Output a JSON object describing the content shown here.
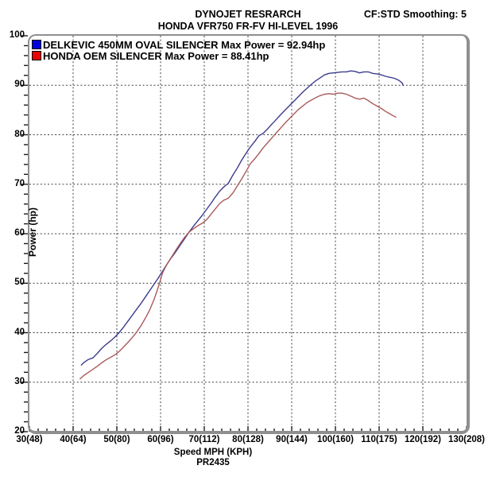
{
  "header": {
    "title": "DYNOJET RESRARCH",
    "subtitle": "HONDA VFR750 FR-FV HI-LEVEL 1996",
    "smoothing": "CF:STD Smoothing: 5"
  },
  "footer": {
    "x_axis_title": "Speed MPH (KPH)",
    "run_id": "PR2435"
  },
  "legend": [
    {
      "label": "DELKEVIC 450MM OVAL SILENCER Max Power = 92.94hp",
      "swatch_color": "#0000dd"
    },
    {
      "label": "HONDA OEM SILENCER Max Power = 88.41hp",
      "swatch_color": "#ee0000"
    }
  ],
  "chart_data": {
    "type": "line",
    "title": "DYNOJET RESRARCH - HONDA VFR750 FR-FV HI-LEVEL 1996",
    "xlabel": "Speed MPH (KPH)",
    "ylabel": "Power (hp)",
    "xlim": [
      30,
      130
    ],
    "ylim": [
      20,
      100
    ],
    "grid": "dashed at major ticks, both axes",
    "legend_position": "top-left inside",
    "x_minor_step": 2,
    "y_minor_step": 2,
    "x_ticks": [
      {
        "mph": 30,
        "label": "30(48)"
      },
      {
        "mph": 40,
        "label": "40(64)"
      },
      {
        "mph": 50,
        "label": "50(80)"
      },
      {
        "mph": 60,
        "label": "60(96)"
      },
      {
        "mph": 70,
        "label": "70(112)"
      },
      {
        "mph": 80,
        "label": "80(128)"
      },
      {
        "mph": 90,
        "label": "90(144)"
      },
      {
        "mph": 100,
        "label": "100(160)"
      },
      {
        "mph": 110,
        "label": "110(175)"
      },
      {
        "mph": 120,
        "label": "120(192)"
      },
      {
        "mph": 130,
        "label": "130(208)"
      }
    ],
    "y_ticks": [
      20,
      30,
      40,
      50,
      60,
      70,
      80,
      90,
      100
    ],
    "series": [
      {
        "name": "DELKEVIC 450MM OVAL SILENCER",
        "max_power_hp": 92.94,
        "line_color": "#3c3c8e",
        "points": [
          [
            41.8,
            33.4
          ],
          [
            42.5,
            34.0
          ],
          [
            43.5,
            34.6
          ],
          [
            44.5,
            34.9
          ],
          [
            45.5,
            35.8
          ],
          [
            46.5,
            36.8
          ],
          [
            47.5,
            37.6
          ],
          [
            48.5,
            38.3
          ],
          [
            49.5,
            39.1
          ],
          [
            50.5,
            40.0
          ],
          [
            51.5,
            41.1
          ],
          [
            52.5,
            42.3
          ],
          [
            53.5,
            43.5
          ],
          [
            54.5,
            44.7
          ],
          [
            55.5,
            45.9
          ],
          [
            56.5,
            47.2
          ],
          [
            57.5,
            48.5
          ],
          [
            58.5,
            49.8
          ],
          [
            59.5,
            51.1
          ],
          [
            60.5,
            52.5
          ],
          [
            61.5,
            53.9
          ],
          [
            62.5,
            55.2
          ],
          [
            63.5,
            56.4
          ],
          [
            64.5,
            57.7
          ],
          [
            65.5,
            59.0
          ],
          [
            66.5,
            60.3
          ],
          [
            67.5,
            61.5
          ],
          [
            68.5,
            62.6
          ],
          [
            69.5,
            63.7
          ],
          [
            70.5,
            64.9
          ],
          [
            71.5,
            66.1
          ],
          [
            72.5,
            67.4
          ],
          [
            73.5,
            68.6
          ],
          [
            74.5,
            69.5
          ],
          [
            75.5,
            70.2
          ],
          [
            76.5,
            71.8
          ],
          [
            77.5,
            73.2
          ],
          [
            78.5,
            74.8
          ],
          [
            79.5,
            76.2
          ],
          [
            80.5,
            77.5
          ],
          [
            81.5,
            78.6
          ],
          [
            82.5,
            79.8
          ],
          [
            83.5,
            80.3
          ],
          [
            84.5,
            81.2
          ],
          [
            85.5,
            82.2
          ],
          [
            86.5,
            83.1
          ],
          [
            87.5,
            84.1
          ],
          [
            88.5,
            85.0
          ],
          [
            89.5,
            85.9
          ],
          [
            90.5,
            86.8
          ],
          [
            91.5,
            87.7
          ],
          [
            92.5,
            88.6
          ],
          [
            93.5,
            89.4
          ],
          [
            94.5,
            90.2
          ],
          [
            95.5,
            90.9
          ],
          [
            96.5,
            91.5
          ],
          [
            97.5,
            92.1
          ],
          [
            98.5,
            92.4
          ],
          [
            99.5,
            92.5
          ],
          [
            100.5,
            92.6
          ],
          [
            101.5,
            92.7
          ],
          [
            102.5,
            92.7
          ],
          [
            103.5,
            92.9
          ],
          [
            104.5,
            92.8
          ],
          [
            105.5,
            92.5
          ],
          [
            106.5,
            92.7
          ],
          [
            107.5,
            92.7
          ],
          [
            108.5,
            92.4
          ],
          [
            109.5,
            92.3
          ],
          [
            110.5,
            92.1
          ],
          [
            111.5,
            91.8
          ],
          [
            112.5,
            91.6
          ],
          [
            113.5,
            91.4
          ],
          [
            114.5,
            91.0
          ],
          [
            115.2,
            90.5
          ],
          [
            115.6,
            89.9
          ]
        ]
      },
      {
        "name": "HONDA OEM SILENCER",
        "max_power_hp": 88.41,
        "line_color": "#aa5a5a",
        "points": [
          [
            41.5,
            30.6
          ],
          [
            42.5,
            31.4
          ],
          [
            43.5,
            32.0
          ],
          [
            44.5,
            32.6
          ],
          [
            45.5,
            33.2
          ],
          [
            46.5,
            33.9
          ],
          [
            47.5,
            34.5
          ],
          [
            48.5,
            35.0
          ],
          [
            49.5,
            35.5
          ],
          [
            50.5,
            36.2
          ],
          [
            51.5,
            37.1
          ],
          [
            52.5,
            38.0
          ],
          [
            53.5,
            39.0
          ],
          [
            54.5,
            40.1
          ],
          [
            55.5,
            41.4
          ],
          [
            56.5,
            42.9
          ],
          [
            57.5,
            44.6
          ],
          [
            58.5,
            46.7
          ],
          [
            59.5,
            49.3
          ],
          [
            60.5,
            52.2
          ],
          [
            61.5,
            53.9
          ],
          [
            62.5,
            55.3
          ],
          [
            63.5,
            56.7
          ],
          [
            64.5,
            58.0
          ],
          [
            65.5,
            59.3
          ],
          [
            66.5,
            60.3
          ],
          [
            67.5,
            61.0
          ],
          [
            68.5,
            61.6
          ],
          [
            69.5,
            62.1
          ],
          [
            70.5,
            62.8
          ],
          [
            71.5,
            63.9
          ],
          [
            72.5,
            65.0
          ],
          [
            73.5,
            66.1
          ],
          [
            74.5,
            66.8
          ],
          [
            75.5,
            67.2
          ],
          [
            76.5,
            68.2
          ],
          [
            77.5,
            69.6
          ],
          [
            78.5,
            71.0
          ],
          [
            79.5,
            72.5
          ],
          [
            80.5,
            74.1
          ],
          [
            81.5,
            75.1
          ],
          [
            82.5,
            76.2
          ],
          [
            83.5,
            77.4
          ],
          [
            84.5,
            78.4
          ],
          [
            85.5,
            79.4
          ],
          [
            86.5,
            80.4
          ],
          [
            87.5,
            81.4
          ],
          [
            88.5,
            82.4
          ],
          [
            89.5,
            83.3
          ],
          [
            90.5,
            84.2
          ],
          [
            91.5,
            85.1
          ],
          [
            92.5,
            85.8
          ],
          [
            93.5,
            86.5
          ],
          [
            94.5,
            87.0
          ],
          [
            95.5,
            87.5
          ],
          [
            96.5,
            87.9
          ],
          [
            97.5,
            88.2
          ],
          [
            98.5,
            88.3
          ],
          [
            99.5,
            88.2
          ],
          [
            100.5,
            88.4
          ],
          [
            101.5,
            88.4
          ],
          [
            102.5,
            88.2
          ],
          [
            103.5,
            87.8
          ],
          [
            104.5,
            87.4
          ],
          [
            105.5,
            87.2
          ],
          [
            106.5,
            87.4
          ],
          [
            107.5,
            86.9
          ],
          [
            108.5,
            86.3
          ],
          [
            109.5,
            85.8
          ],
          [
            110.5,
            85.3
          ],
          [
            111.5,
            84.7
          ],
          [
            112.5,
            84.2
          ],
          [
            113.3,
            83.8
          ],
          [
            113.9,
            83.5
          ]
        ]
      }
    ],
    "style": {
      "grid_color": "#3f3f3f",
      "frame_color": "#8f8f8f",
      "tick_color": "#1a1a1a"
    }
  }
}
